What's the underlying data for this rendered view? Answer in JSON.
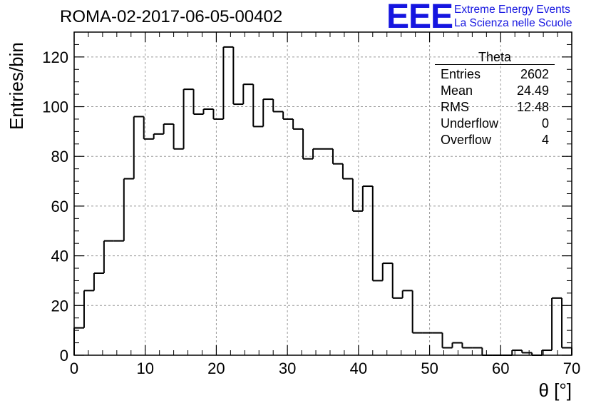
{
  "header": {
    "run_title": "ROMA-02-2017-06-05-00402",
    "logo_mark": "EEE",
    "logo_line1": "Extreme Energy Events",
    "logo_line2": "La Scienza nelle Scuole"
  },
  "stats_box": {
    "title": "Theta",
    "rows": [
      {
        "label": "Entries",
        "value": "2602"
      },
      {
        "label": "Mean",
        "value": "24.49"
      },
      {
        "label": "RMS",
        "value": "12.48"
      },
      {
        "label": "Underflow",
        "value": "0"
      },
      {
        "label": "Overflow",
        "value": "4"
      }
    ]
  },
  "chart_data": {
    "type": "bar",
    "histogram": true,
    "title": "ROMA-02-2017-06-05-00402",
    "xlabel": "θ [°]",
    "ylabel": "Entries/bin",
    "xlim": [
      0,
      70
    ],
    "ylim": [
      0,
      130
    ],
    "xticks": [
      0,
      10,
      20,
      30,
      40,
      50,
      60,
      70
    ],
    "yticks": [
      0,
      20,
      40,
      60,
      80,
      100,
      120
    ],
    "grid": true,
    "bin_width": 1.4,
    "bin_edges_start": 0,
    "values": [
      11,
      26,
      33,
      46,
      46,
      71,
      96,
      87,
      89,
      93,
      83,
      107,
      97,
      99,
      95,
      124,
      101,
      109,
      92,
      103,
      98,
      95,
      91,
      79,
      83,
      83,
      77,
      71,
      58,
      68,
      30,
      37,
      23,
      26,
      9,
      9,
      9,
      3,
      5,
      3,
      3,
      0,
      0,
      0,
      2,
      1,
      0,
      2,
      23,
      3
    ]
  }
}
